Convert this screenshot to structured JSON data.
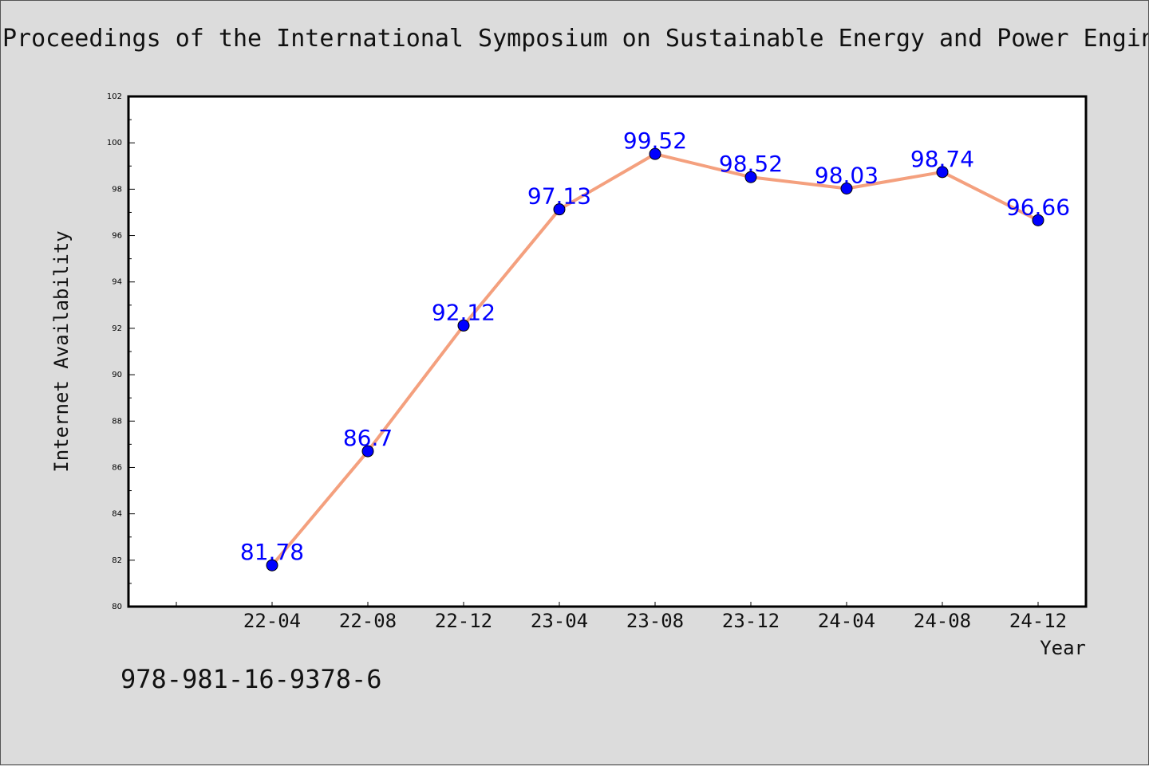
{
  "page": {
    "title": "Proceedings of the International Symposium on Sustainable Energy and Power Engin",
    "isbn": "978-981-16-9378-6"
  },
  "colors": {
    "background": "#dcdcdc",
    "plot_background": "#ffffff",
    "line": "#f4a07e",
    "marker": "#0000ff",
    "data_label": "#0000ff"
  },
  "chart_data": {
    "type": "line",
    "title": "",
    "xlabel": "Year",
    "ylabel": "Internet Availability",
    "categories": [
      "22-04",
      "22-08",
      "22-12",
      "23-04",
      "23-08",
      "23-12",
      "24-04",
      "24-08",
      "24-12"
    ],
    "series": [
      {
        "values": [
          81.78,
          86.7,
          92.12,
          97.13,
          99.52,
          98.52,
          98.03,
          98.74,
          96.66
        ]
      }
    ],
    "data_labels": [
      "81.78",
      "86.7",
      "92.12",
      "97.13",
      "99.52",
      "98.52",
      "98.03",
      "98.74",
      "96.66"
    ],
    "ylim": [
      80,
      102
    ],
    "yticks": [
      "80",
      "82",
      "84",
      "86",
      "88",
      "90",
      "92",
      "94",
      "96",
      "98",
      "100",
      "102"
    ],
    "grid": false,
    "legend": "none"
  }
}
